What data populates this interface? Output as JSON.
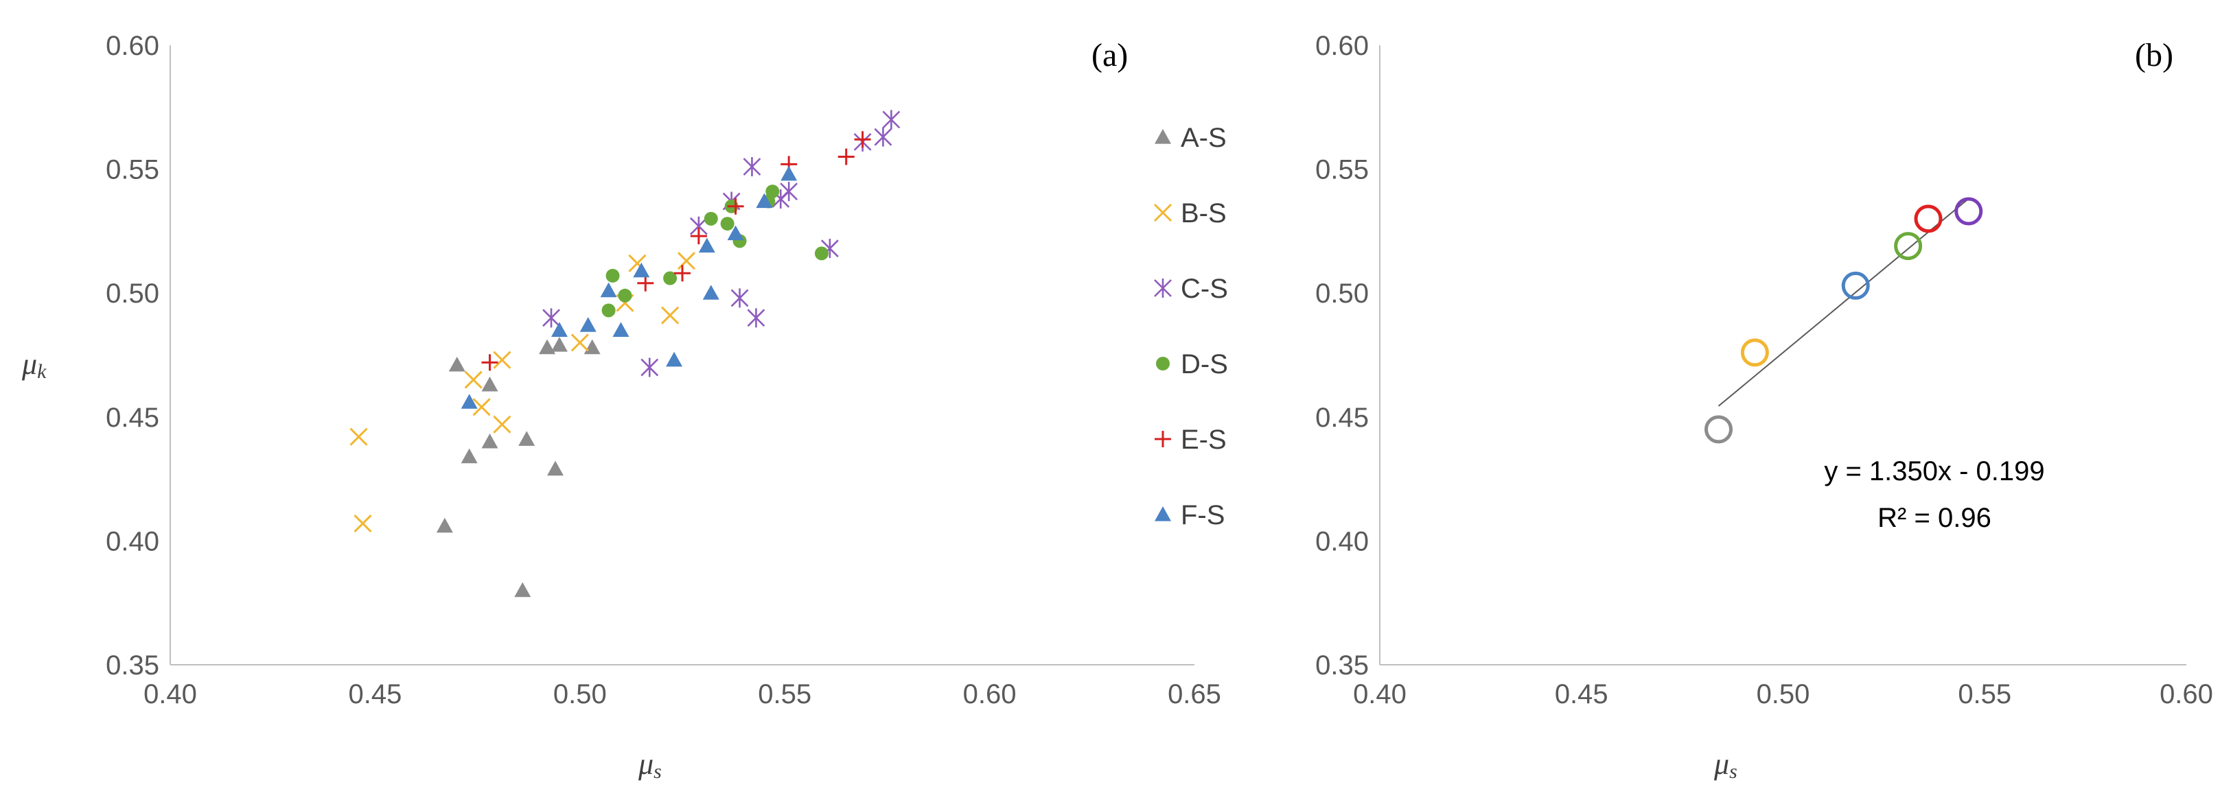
{
  "chart_data": [
    {
      "panel_label": "(a)",
      "type": "scatter",
      "xlabel": {
        "main": "μ",
        "sub": "s"
      },
      "ylabel": {
        "main": "μ",
        "sub": "k"
      },
      "xlim": [
        0.4,
        0.65
      ],
      "ylim": [
        0.35,
        0.6
      ],
      "xticks": [
        "0.40",
        "0.45",
        "0.50",
        "0.55",
        "0.60",
        "0.65"
      ],
      "yticks": [
        "0.35",
        "0.40",
        "0.45",
        "0.50",
        "0.55",
        "0.60"
      ],
      "grid": false,
      "legend_position": "right",
      "series": [
        {
          "name": "A-S",
          "marker": "triangle",
          "color": "#8c8c8c",
          "points": [
            [
              0.47,
              0.471
            ],
            [
              0.473,
              0.434
            ],
            [
              0.467,
              0.406
            ],
            [
              0.478,
              0.463
            ],
            [
              0.478,
              0.44
            ],
            [
              0.486,
              0.38
            ],
            [
              0.487,
              0.441
            ],
            [
              0.492,
              0.478
            ],
            [
              0.494,
              0.429
            ],
            [
              0.495,
              0.479
            ],
            [
              0.503,
              0.478
            ]
          ]
        },
        {
          "name": "B-S",
          "marker": "x",
          "color": "#f2b632",
          "points": [
            [
              0.446,
              0.442
            ],
            [
              0.447,
              0.407
            ],
            [
              0.474,
              0.465
            ],
            [
              0.476,
              0.454
            ],
            [
              0.481,
              0.447
            ],
            [
              0.481,
              0.473
            ],
            [
              0.5,
              0.48
            ],
            [
              0.511,
              0.496
            ],
            [
              0.514,
              0.512
            ],
            [
              0.522,
              0.491
            ],
            [
              0.526,
              0.513
            ]
          ]
        },
        {
          "name": "C-S",
          "marker": "asterisk",
          "color": "#8e5bbd",
          "points": [
            [
              0.493,
              0.49
            ],
            [
              0.517,
              0.47
            ],
            [
              0.529,
              0.527
            ],
            [
              0.537,
              0.537
            ],
            [
              0.539,
              0.498
            ],
            [
              0.542,
              0.551
            ],
            [
              0.543,
              0.49
            ],
            [
              0.549,
              0.538
            ],
            [
              0.551,
              0.541
            ],
            [
              0.561,
              0.518
            ],
            [
              0.569,
              0.561
            ],
            [
              0.574,
              0.563
            ],
            [
              0.576,
              0.57
            ]
          ]
        },
        {
          "name": "D-S",
          "marker": "circle",
          "color": "#6aaa3a",
          "points": [
            [
              0.507,
              0.493
            ],
            [
              0.508,
              0.507
            ],
            [
              0.511,
              0.499
            ],
            [
              0.522,
              0.506
            ],
            [
              0.532,
              0.53
            ],
            [
              0.536,
              0.528
            ],
            [
              0.537,
              0.535
            ],
            [
              0.539,
              0.521
            ],
            [
              0.546,
              0.537
            ],
            [
              0.547,
              0.541
            ],
            [
              0.559,
              0.516
            ]
          ]
        },
        {
          "name": "E-S",
          "marker": "plus",
          "color": "#d62020",
          "points": [
            [
              0.478,
              0.472
            ],
            [
              0.516,
              0.504
            ],
            [
              0.525,
              0.508
            ],
            [
              0.529,
              0.523
            ],
            [
              0.538,
              0.535
            ],
            [
              0.551,
              0.552
            ],
            [
              0.565,
              0.555
            ],
            [
              0.569,
              0.562
            ]
          ]
        },
        {
          "name": "F-S",
          "marker": "triangle",
          "color": "#4a82c4",
          "points": [
            [
              0.473,
              0.456
            ],
            [
              0.495,
              0.485
            ],
            [
              0.502,
              0.487
            ],
            [
              0.507,
              0.501
            ],
            [
              0.51,
              0.485
            ],
            [
              0.515,
              0.509
            ],
            [
              0.523,
              0.473
            ],
            [
              0.531,
              0.519
            ],
            [
              0.532,
              0.5
            ],
            [
              0.538,
              0.524
            ],
            [
              0.545,
              0.537
            ],
            [
              0.551,
              0.548
            ]
          ]
        }
      ]
    },
    {
      "panel_label": "(b)",
      "type": "scatter",
      "xlabel": {
        "main": "μ",
        "sub": "s"
      },
      "xlim": [
        0.4,
        0.6
      ],
      "ylim": [
        0.35,
        0.6
      ],
      "xticks": [
        "0.40",
        "0.45",
        "0.50",
        "0.55",
        "0.60"
      ],
      "yticks": [
        "0.35",
        "0.40",
        "0.45",
        "0.50",
        "0.55",
        "0.60"
      ],
      "grid": false,
      "series": [
        {
          "marker": "open-circle",
          "points": [
            [
              0.484,
              0.445,
              "#8c8c8c"
            ],
            [
              0.493,
              0.476,
              "#f2b632"
            ],
            [
              0.518,
              0.503,
              "#4a82c4"
            ],
            [
              0.531,
              0.519,
              "#6aaa3a"
            ],
            [
              0.536,
              0.53,
              "#e02020"
            ],
            [
              0.546,
              0.533,
              "#7a3fb8"
            ]
          ]
        }
      ],
      "trendline": {
        "slope": 1.35,
        "intercept": -0.199,
        "x_range": [
          0.484,
          0.546
        ],
        "color": "#595959"
      },
      "equation": "y = 1.350x - 0.199",
      "r_squared": "R² = 0.96"
    }
  ]
}
